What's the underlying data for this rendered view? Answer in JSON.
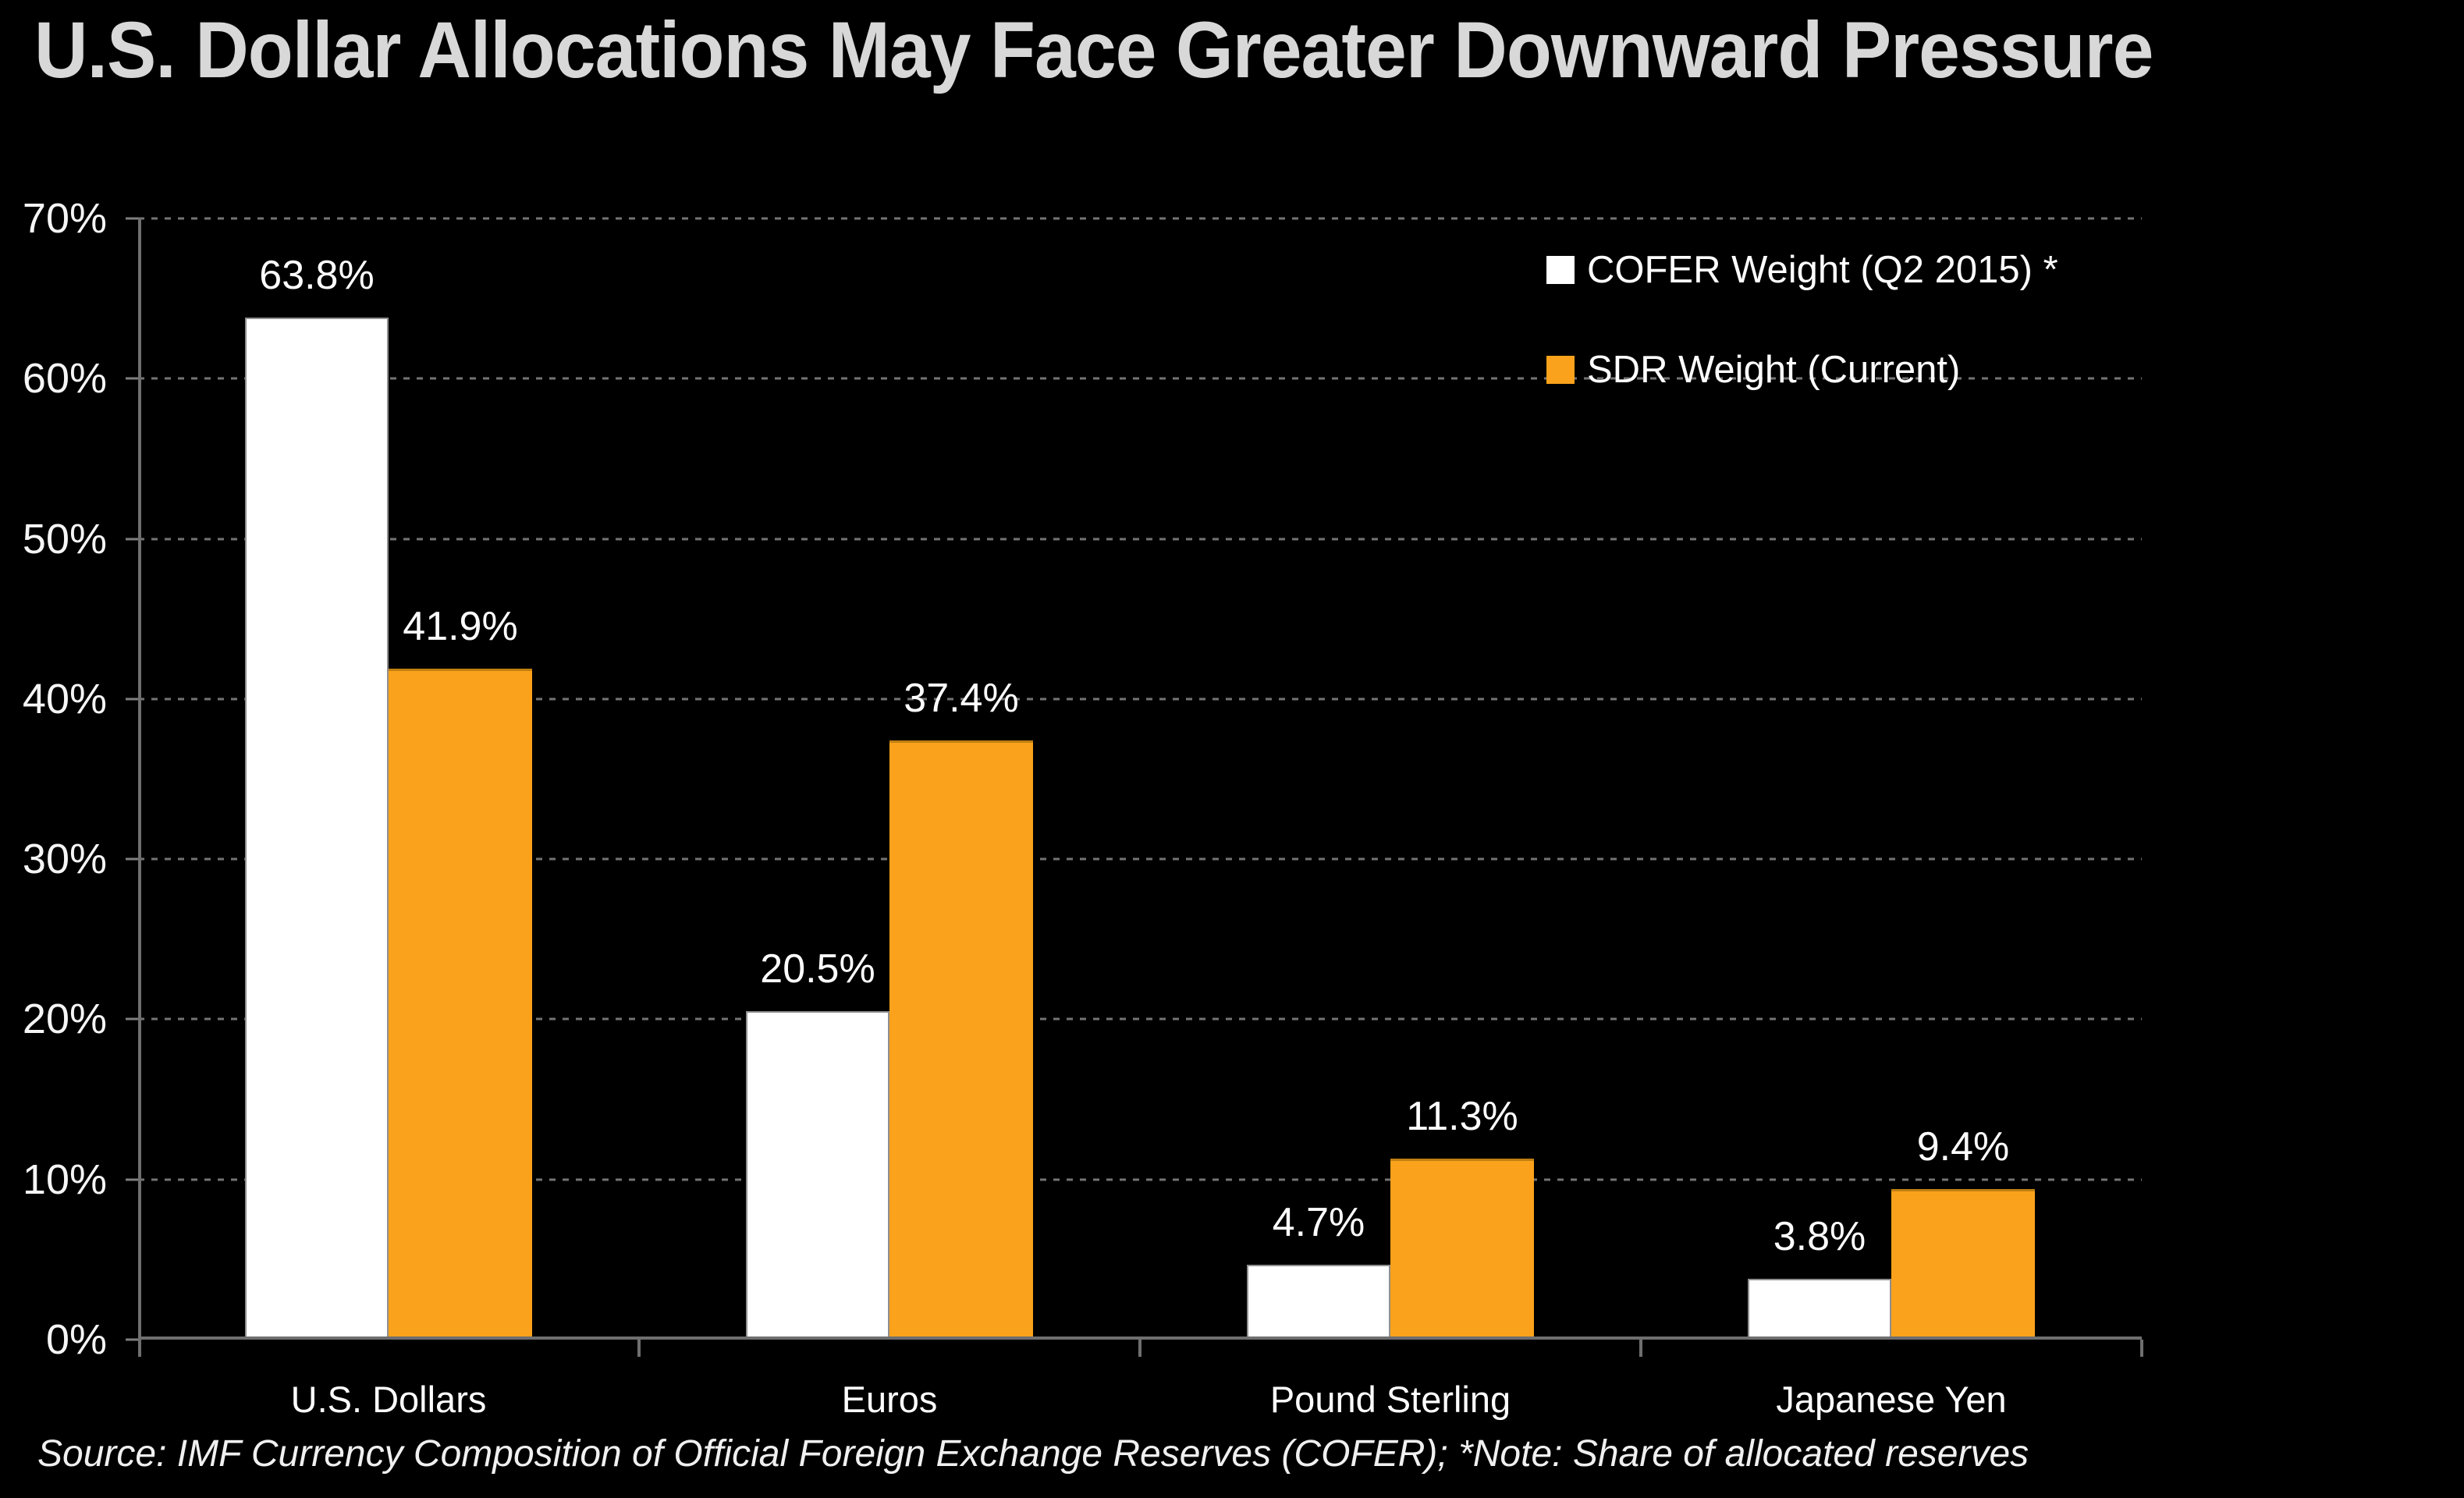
{
  "title": "U.S. Dollar Allocations May Face Greater Downward Pressure",
  "source_note": "Source: IMF Currency Composition of Official Foreign Exchange Reserves (COFER); *Note: Share of allocated reserves",
  "colors": {
    "background": "#000000",
    "title_text": "#D8D8D8",
    "text": "#FFFFFF",
    "axis": "#6f6f6f",
    "gridline": "#9b9b9b",
    "cofer_bar": "#FFFFFF",
    "sdr_bar": "#FAA21B"
  },
  "legend": {
    "items": [
      {
        "label": "COFER Weight (Q2 2015) *",
        "color": "#FFFFFF"
      },
      {
        "label": "SDR Weight (Current)",
        "color": "#FAA21B"
      }
    ]
  },
  "y_axis": {
    "ticks": [
      "70%",
      "60%",
      "50%",
      "40%",
      "30%",
      "20%",
      "10%",
      "0%"
    ]
  },
  "chart_data": {
    "type": "bar",
    "title": "U.S. Dollar Allocations May Face Greater Downward Pressure",
    "categories": [
      "U.S. Dollars",
      "Euros",
      "Pound Sterling",
      "Japanese Yen"
    ],
    "series": [
      {
        "name": "COFER Weight (Q2 2015) *",
        "color": "#FFFFFF",
        "values": [
          63.8,
          20.5,
          4.7,
          3.8
        ],
        "labels": [
          "63.8%",
          "20.5%",
          "4.7%",
          "3.8%"
        ]
      },
      {
        "name": "SDR Weight (Current)",
        "color": "#FAA21B",
        "values": [
          41.9,
          37.4,
          11.3,
          9.4
        ],
        "labels": [
          "41.9%",
          "37.4%",
          "11.3%",
          "9.4%"
        ]
      }
    ],
    "xlabel": "",
    "ylabel": "",
    "ylim": [
      0,
      70
    ],
    "y_tick_step": 10,
    "grid": "dotted horizontal",
    "legend_position": "top-right",
    "background": "black"
  }
}
